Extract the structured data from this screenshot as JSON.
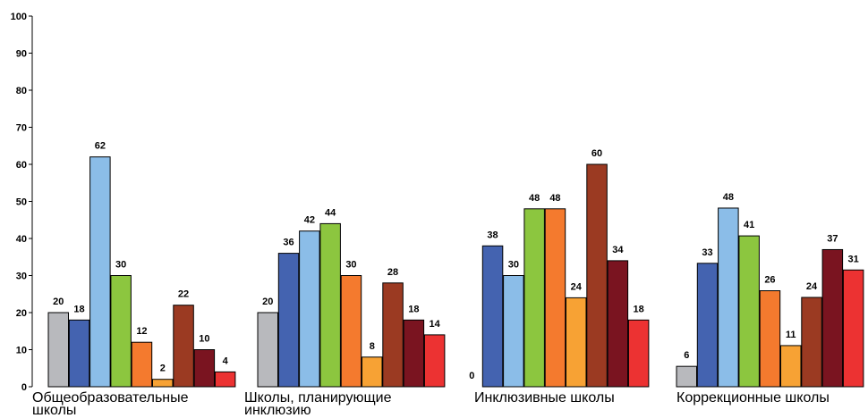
{
  "chart_data": {
    "type": "bar",
    "categories": [
      [
        "Общеобразовательные",
        "школы"
      ],
      [
        "Школы, планирующие",
        "инклюзию"
      ],
      [
        "Инклюзивные школы"
      ],
      [
        "Коррекционные школы"
      ]
    ],
    "series_colors": [
      "#b8b9bd",
      "#4463b0",
      "#8bbde8",
      "#8cc63f",
      "#f47a2e",
      "#f7a234",
      "#9b3a22",
      "#7a1420",
      "#ec3232"
    ],
    "values": [
      [
        20,
        18,
        62,
        30,
        12,
        2,
        22,
        10,
        4
      ],
      [
        20,
        36,
        42,
        44,
        30,
        8,
        28,
        18,
        14
      ],
      [
        0,
        38,
        30,
        48,
        48,
        24,
        60,
        34,
        18
      ],
      [
        6,
        33,
        48,
        41,
        26,
        11,
        24,
        37,
        31
      ]
    ],
    "bar_values": [
      [
        20,
        18,
        62,
        30,
        12,
        2,
        22,
        10,
        4
      ],
      [
        20,
        36,
        42,
        44,
        30,
        8,
        28,
        18,
        14
      ],
      [
        0,
        38,
        30,
        48,
        48,
        24,
        60,
        34,
        18
      ],
      [
        5.5,
        33.3,
        48.2,
        40.7,
        25.9,
        11.1,
        24.1,
        37,
        31.5
      ]
    ],
    "ylim": [
      0,
      100
    ],
    "yticks": [
      "0",
      "10",
      "20",
      "30",
      "40",
      "50",
      "60",
      "70",
      "80",
      "90",
      "100"
    ],
    "grid": false
  }
}
